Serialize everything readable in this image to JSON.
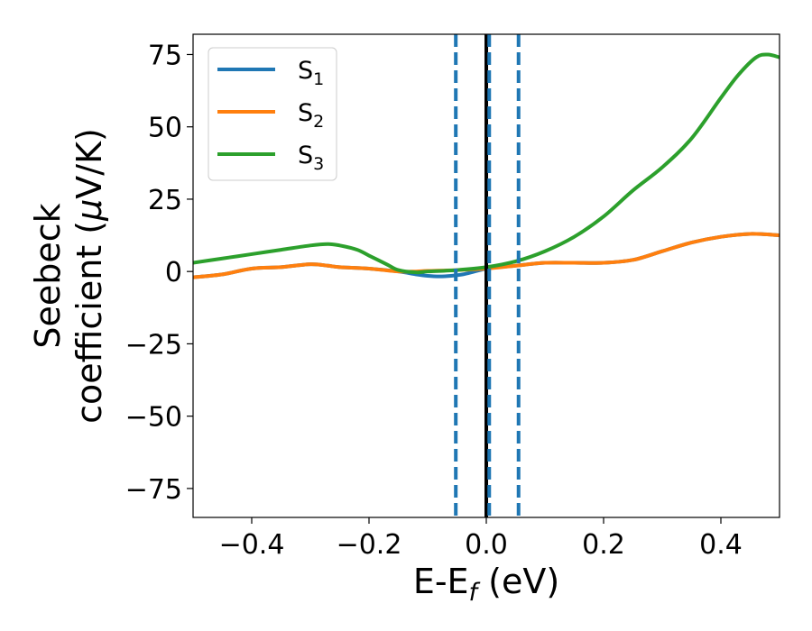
{
  "chart_data": {
    "type": "line",
    "xlabel": "E-E",
    "xlabel_sub": "f",
    "xlabel_suffix": " (eV)",
    "ylabel_line1": "Seebeck",
    "ylabel_line2_pre": "coefficient  (",
    "ylabel_mu": "μ",
    "ylabel_line2_post": "V/K)",
    "xlim": [
      -0.5,
      0.5
    ],
    "ylim": [
      -85,
      82
    ],
    "xticks": [
      -0.4,
      -0.2,
      0.0,
      0.2,
      0.4
    ],
    "xtick_labels": [
      "−0.4",
      "−0.2",
      "0.0",
      "0.2",
      "0.4"
    ],
    "yticks": [
      75,
      50,
      25,
      0,
      -25,
      -50,
      -75
    ],
    "ytick_labels": [
      "75",
      "50",
      "25",
      "0",
      "−25",
      "−50",
      "−75"
    ],
    "grid": false,
    "legend_position": "top-left",
    "vlines": [
      {
        "x": -0.052,
        "style": "dashed",
        "color": "#1f77b4"
      },
      {
        "x": 0.0,
        "style": "solid",
        "color": "#000000"
      },
      {
        "x": 0.005,
        "style": "dashed",
        "color": "#1f77b4"
      },
      {
        "x": 0.055,
        "style": "dashed",
        "color": "#1f77b4"
      }
    ],
    "series": [
      {
        "name": "S",
        "sub": "1",
        "color": "#1f77b4",
        "x": [
          -0.5,
          -0.45,
          -0.4,
          -0.35,
          -0.3,
          -0.27,
          -0.25,
          -0.2,
          -0.15,
          -0.12,
          -0.1,
          -0.08,
          -0.06,
          -0.04,
          -0.02,
          0.0,
          0.02,
          0.05,
          0.1,
          0.15,
          0.2,
          0.25,
          0.3,
          0.35,
          0.4,
          0.45,
          0.5
        ],
        "y": [
          -2,
          -1,
          1,
          1.5,
          2.5,
          2,
          1.5,
          1,
          0,
          -1,
          -1.5,
          -1.7,
          -1.5,
          -1,
          0,
          1,
          1.5,
          2,
          3,
          3,
          3,
          4,
          7,
          10,
          12,
          13,
          12.5
        ]
      },
      {
        "name": "S",
        "sub": "2",
        "color": "#ff7f0e",
        "x": [
          -0.5,
          -0.45,
          -0.4,
          -0.35,
          -0.3,
          -0.27,
          -0.25,
          -0.2,
          -0.15,
          -0.12,
          -0.1,
          -0.05,
          0.0,
          0.05,
          0.1,
          0.15,
          0.2,
          0.25,
          0.3,
          0.35,
          0.4,
          0.45,
          0.5
        ],
        "y": [
          -2,
          -1,
          1,
          1.5,
          2.5,
          2,
          1.5,
          1,
          0,
          0,
          0.2,
          0.5,
          1,
          2,
          3,
          3,
          3,
          4,
          7,
          10,
          12,
          13,
          12.5
        ]
      },
      {
        "name": "S",
        "sub": "3",
        "color": "#2ca02c",
        "x": [
          -0.5,
          -0.45,
          -0.4,
          -0.35,
          -0.3,
          -0.27,
          -0.25,
          -0.22,
          -0.2,
          -0.17,
          -0.15,
          -0.12,
          -0.1,
          -0.05,
          0.0,
          0.05,
          0.1,
          0.15,
          0.2,
          0.25,
          0.3,
          0.35,
          0.4,
          0.43,
          0.46,
          0.48,
          0.5
        ],
        "y": [
          3,
          4.5,
          6,
          7.5,
          9,
          9.5,
          9,
          7.5,
          5.5,
          2.5,
          0.5,
          -0.3,
          0,
          0.5,
          1.5,
          3.5,
          7,
          12,
          19,
          28,
          36,
          46,
          60,
          68,
          74,
          75,
          74
        ]
      }
    ]
  }
}
